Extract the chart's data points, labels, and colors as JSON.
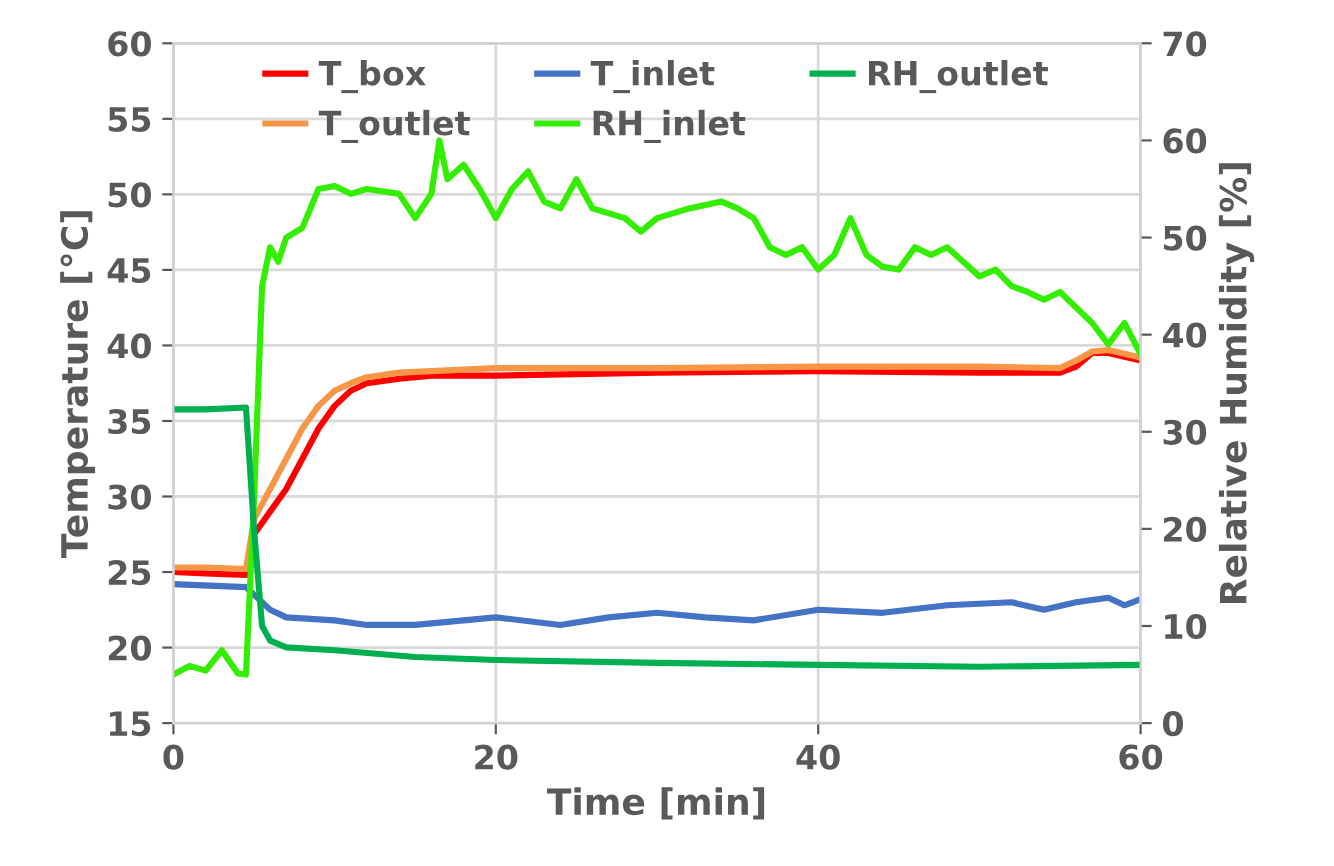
{
  "chart_data": {
    "type": "line",
    "xlabel": "Time [min]",
    "ylabel": "Temperature [°C]",
    "y2label": "Relative Humidity [%]",
    "xlim": [
      0,
      60
    ],
    "xticks": [
      0,
      20,
      40,
      60
    ],
    "ylim": [
      15,
      60
    ],
    "yticks": [
      15,
      20,
      25,
      30,
      35,
      40,
      45,
      50,
      55,
      60
    ],
    "y2lim": [
      0,
      70
    ],
    "y2ticks": [
      0,
      10,
      20,
      30,
      40,
      50,
      60,
      70
    ],
    "grid": true,
    "legend": "top",
    "marker": "none",
    "line_style": "solid",
    "series": [
      {
        "name": "T_box",
        "color": "#ff0000",
        "x": [
          0,
          2,
          4.5,
          5,
          6,
          7,
          8,
          9,
          10,
          11,
          12,
          14,
          16,
          20,
          30,
          40,
          50,
          55,
          56,
          57,
          58,
          60
        ],
        "values": [
          25.0,
          24.9,
          24.8,
          27.5,
          29,
          30.5,
          32.5,
          34.5,
          36,
          37,
          37.5,
          37.8,
          38,
          38,
          38.2,
          38.3,
          38.2,
          38.2,
          38.6,
          39.5,
          39.5,
          39
        ]
      },
      {
        "name": "T_outlet",
        "color": "#f79646",
        "x": [
          0,
          2,
          4.5,
          5,
          6,
          7,
          8,
          9,
          10,
          11,
          12,
          14,
          20,
          30,
          40,
          50,
          55,
          56,
          57,
          58,
          60
        ],
        "values": [
          25.3,
          25.3,
          25.2,
          28.5,
          30.5,
          32.5,
          34.5,
          36,
          37,
          37.5,
          37.9,
          38.2,
          38.5,
          38.5,
          38.6,
          38.6,
          38.5,
          39,
          39.6,
          39.7,
          39.2
        ]
      },
      {
        "name": "T_inlet",
        "color": "#4472c4",
        "x": [
          0,
          4.5,
          5,
          6,
          7,
          10,
          12,
          15,
          18,
          20,
          24,
          27,
          30,
          33,
          36,
          40,
          44,
          48,
          52,
          54,
          56,
          58,
          59,
          60
        ],
        "values": [
          24.2,
          24,
          23.5,
          22.5,
          22,
          21.8,
          21.5,
          21.5,
          21.8,
          22,
          21.5,
          22,
          22.3,
          22,
          21.8,
          22.5,
          22.3,
          22.8,
          23,
          22.5,
          23,
          23.3,
          22.8,
          23.2
        ]
      },
      {
        "name": "RH_inlet",
        "color": "#33ee00",
        "axis": "y2",
        "x": [
          0,
          1,
          2,
          3,
          4,
          4.5,
          5,
          5.5,
          6,
          6.5,
          7,
          8,
          9,
          10,
          11,
          12,
          14,
          15,
          16,
          16.5,
          17,
          18,
          19,
          20,
          21,
          22,
          23,
          24,
          25,
          26,
          28,
          29,
          30,
          32,
          34,
          35,
          36,
          37,
          38,
          39,
          40,
          41,
          42,
          43,
          44,
          45,
          46,
          47,
          48,
          49,
          50,
          51,
          52,
          53,
          54,
          55,
          56,
          57,
          58,
          59,
          60
        ],
        "values": [
          5,
          5.9,
          5.4,
          7.5,
          5.1,
          5,
          23,
          45,
          49,
          47.5,
          50,
          51,
          55,
          55.3,
          54.5,
          55,
          54.5,
          52,
          54.5,
          60,
          56,
          57.5,
          55,
          52,
          55,
          56.8,
          53.7,
          53,
          56,
          53,
          52,
          50.6,
          52,
          53,
          53.7,
          53,
          52,
          49,
          48.2,
          49,
          46.7,
          48.2,
          52,
          48.2,
          47,
          46.7,
          49,
          48.2,
          49,
          47.5,
          46,
          46.7,
          45,
          44.4,
          43.6,
          44.4,
          42.8,
          41.2,
          39,
          41.2,
          38
        ]
      },
      {
        "name": "RH_outlet",
        "color": "#00b050",
        "axis": "y2",
        "x": [
          0,
          2,
          4.5,
          5,
          5.5,
          6,
          7,
          10,
          15,
          20,
          30,
          40,
          50,
          60
        ],
        "values": [
          32.3,
          32.3,
          32.5,
          20,
          10,
          8.5,
          7.8,
          7.5,
          6.8,
          6.5,
          6.2,
          6.0,
          5.8,
          6.0
        ]
      }
    ]
  }
}
